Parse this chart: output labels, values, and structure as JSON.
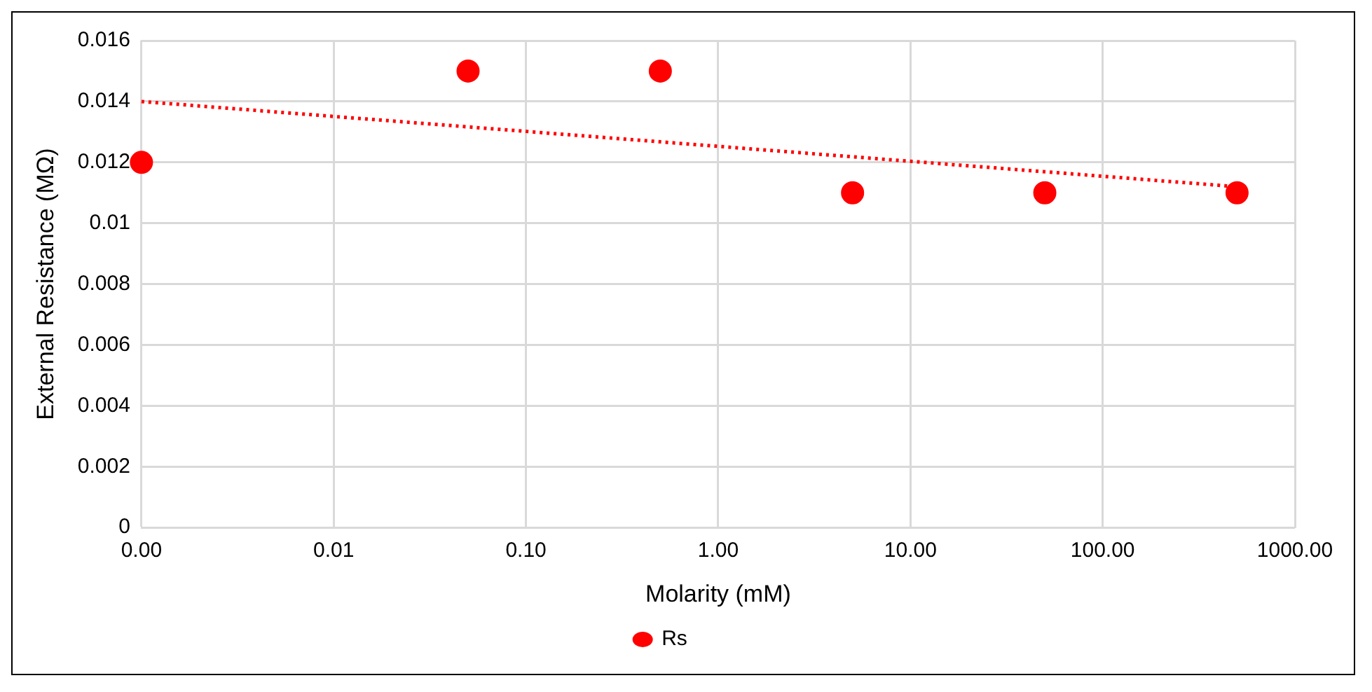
{
  "chart_data": {
    "type": "scatter",
    "xlabel": "Molarity (mM)",
    "ylabel": "External Resistance (MΩ)",
    "x": [
      0.001,
      0.05,
      0.5,
      5,
      50,
      500
    ],
    "series": [
      {
        "name": "Rs",
        "color": "#ff0000",
        "values": [
          0.012,
          0.015,
          0.015,
          0.011,
          0.011,
          0.011
        ],
        "marker": "circle"
      },
      {
        "type": "line",
        "color": "#ff0000",
        "x": [
          0.001,
          500
        ],
        "values": [
          0.014,
          0.0112
        ],
        "marker": "none",
        "line_style": "dotted"
      }
    ],
    "log": "x",
    "xlim": [
      0.001,
      1000
    ],
    "xticks": [
      {
        "value": 0.001,
        "label": "0.00"
      },
      {
        "value": 0.01,
        "label": "0.01"
      },
      {
        "value": 0.1,
        "label": "0.10"
      },
      {
        "value": 1,
        "label": "1.00"
      },
      {
        "value": 10,
        "label": "10.00"
      },
      {
        "value": 100,
        "label": "100.00"
      },
      {
        "value": 1000,
        "label": "1000.00"
      }
    ],
    "ylim": [
      0,
      0.016
    ],
    "yticks": [
      0,
      0.002,
      0.004,
      0.006,
      0.008,
      0.01,
      0.012,
      0.014,
      0.016
    ],
    "grid": true,
    "legend": "bottom"
  }
}
